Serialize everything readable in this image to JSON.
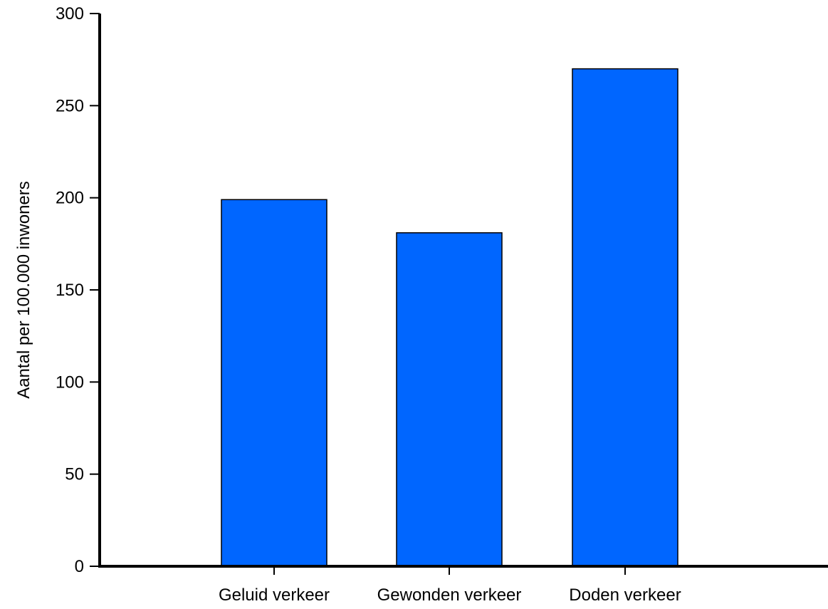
{
  "chart_data": {
    "type": "bar",
    "title": "",
    "xlabel": "",
    "ylabel": "Aantal per 100.000 inwoners",
    "categories": [
      "Geluid verkeer",
      "Gewonden verkeer",
      "Doden verkeer"
    ],
    "values": [
      199,
      181,
      270
    ],
    "ylim": [
      0,
      300
    ],
    "yticks": [
      0,
      50,
      100,
      150,
      200,
      250,
      300
    ],
    "grid": false,
    "legend": "none",
    "colors": {
      "bar_fill": "#0066ff",
      "bar_stroke": "#000000",
      "axis": "#000000"
    }
  }
}
